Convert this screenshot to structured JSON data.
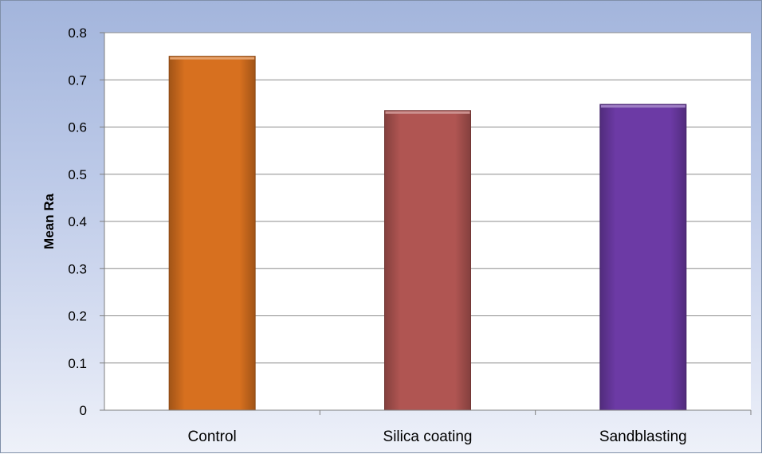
{
  "chart_data": {
    "type": "bar",
    "title": "",
    "xlabel": "",
    "ylabel": "Mean Ra",
    "ylim": [
      0,
      0.8
    ],
    "yticks": [
      "0",
      "0.1",
      "0.2",
      "0.3",
      "0.4",
      "0.5",
      "0.6",
      "0.7",
      "0.8"
    ],
    "grid": true,
    "legend": "none",
    "categories": [
      "Control",
      "Silica coating",
      "Sandblasting"
    ],
    "values": [
      0.75,
      0.635,
      0.648
    ],
    "colors": [
      "#d7701f",
      "#b05552",
      "#6c3aa5"
    ]
  }
}
